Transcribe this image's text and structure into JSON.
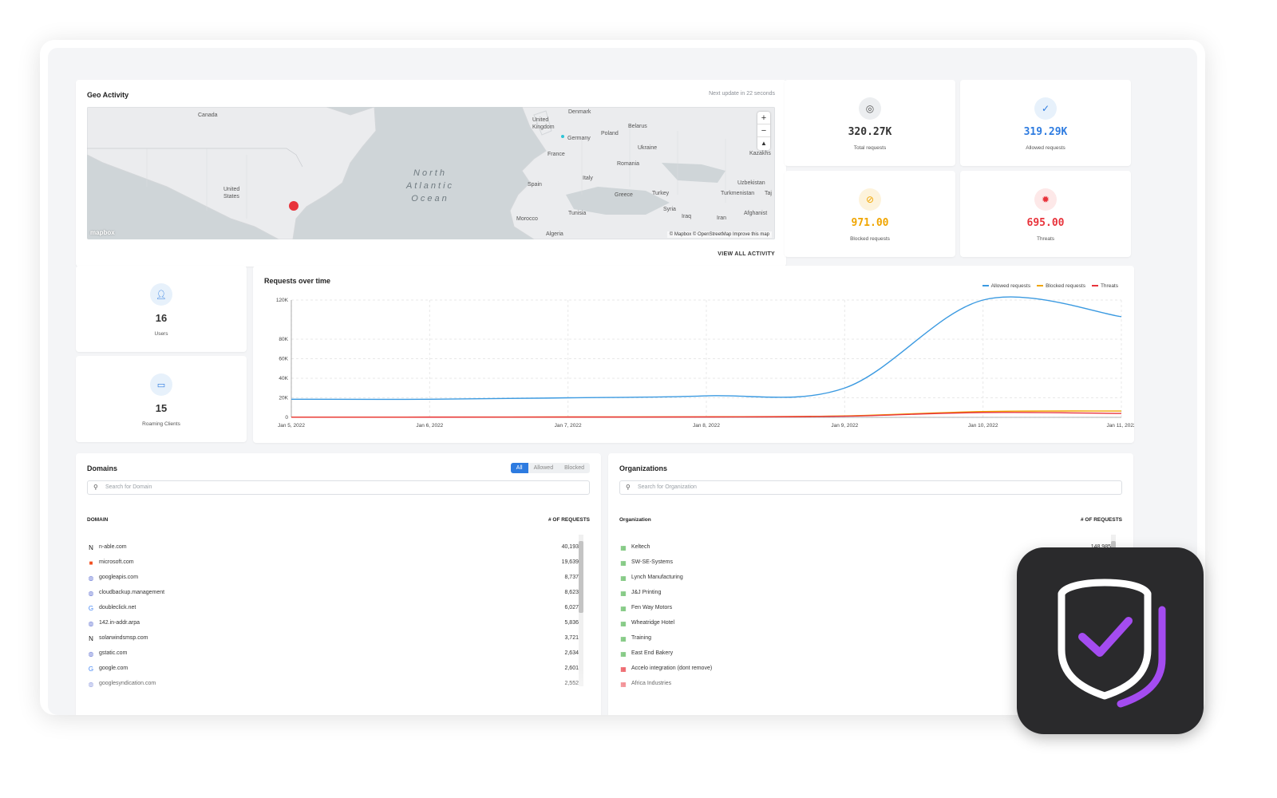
{
  "geo": {
    "title": "Geo Activity",
    "update": "Next update in 22 seconds",
    "view_all": "VIEW ALL ACTIVITY",
    "attribution": "© Mapbox © OpenStreetMap Improve this map",
    "logo": "mapbox",
    "ocean": [
      "North",
      "Atlantic",
      "Ocean"
    ],
    "labels": [
      "Canada",
      "United States",
      "Denmark",
      "United Kingdom",
      "Belarus",
      "Poland",
      "Germany",
      "Ukraine",
      "France",
      "Kazakhs",
      "Romania",
      "Uzbekistan",
      "Spain",
      "Italy",
      "Greece",
      "Turkey",
      "Turkmenistan",
      "Taj",
      "Syria",
      "Afghanist",
      "Tunisia",
      "Iraq",
      "Iran",
      "Morocco",
      "Algeria"
    ]
  },
  "stats": [
    {
      "value": "320.27K",
      "label": "Total requests",
      "color": "#333333",
      "icon_bg": "#eceef0",
      "icon_color": "#555555"
    },
    {
      "value": "319.29K",
      "label": "Allowed requests",
      "color": "#2d7be0",
      "icon_bg": "#e7f1fb",
      "icon_color": "#2d7be0"
    },
    {
      "value": "971.00",
      "label": "Blocked requests",
      "color": "#f0a500",
      "icon_bg": "#fdf3dc",
      "icon_color": "#f0a500"
    },
    {
      "value": "695.00",
      "label": "Threats",
      "color": "#e8333b",
      "icon_bg": "#fde8e8",
      "icon_color": "#e8333b"
    }
  ],
  "users": {
    "value": "16",
    "label": "Users"
  },
  "roaming": {
    "value": "15",
    "label": "Roaming Clients"
  },
  "chart_data": {
    "type": "line",
    "title": "Requests over time",
    "x": [
      "Jan 5, 2022",
      "Jan 6, 2022",
      "Jan 7, 2022",
      "Jan 8, 2022",
      "Jan 9, 2022",
      "Jan 10, 2022",
      "Jan 11, 2022"
    ],
    "yticks": [
      "0",
      "20K",
      "40K",
      "60K",
      "80K",
      "120K"
    ],
    "ylim": [
      0,
      120000
    ],
    "legend": "top-right",
    "series": [
      {
        "name": "Allowed requests",
        "color": "#3b9ae1",
        "values": [
          18500,
          18500,
          20000,
          22000,
          30000,
          120000,
          103000
        ]
      },
      {
        "name": "Blocked requests",
        "color": "#f0a500",
        "values": [
          200,
          300,
          400,
          600,
          1500,
          6000,
          6500
        ]
      },
      {
        "name": "Threats",
        "color": "#e8333b",
        "values": [
          150,
          200,
          300,
          400,
          1200,
          5000,
          4000
        ]
      }
    ]
  },
  "domains": {
    "title": "Domains",
    "filters": [
      "All",
      "Allowed",
      "Blocked"
    ],
    "search_placeholder": "Search for Domain",
    "col_domain": "DOMAIN",
    "col_requests": "# OF REQUESTS",
    "rows": [
      {
        "name": "n-able.com",
        "count": "40,193",
        "icon": "n-able-icon",
        "glyph": "N",
        "color": "#111111"
      },
      {
        "name": "microsoft.com",
        "count": "19,639",
        "icon": "microsoft-icon",
        "glyph": "■",
        "color": "#f25022"
      },
      {
        "name": "googleapis.com",
        "count": "8,737",
        "icon": "globe-icon",
        "glyph": "◍",
        "color": "#6b7bd6"
      },
      {
        "name": "cloudbackup.management",
        "count": "8,623",
        "icon": "globe-icon",
        "glyph": "◍",
        "color": "#6b7bd6"
      },
      {
        "name": "doubleclick.net",
        "count": "6,027",
        "icon": "google-icon",
        "glyph": "G",
        "color": "#4285f4"
      },
      {
        "name": "142.in-addr.arpa",
        "count": "5,836",
        "icon": "globe-icon",
        "glyph": "◍",
        "color": "#6b7bd6"
      },
      {
        "name": "solarwindsmsp.com",
        "count": "3,721",
        "icon": "n-able-icon",
        "glyph": "N",
        "color": "#111111"
      },
      {
        "name": "gstatic.com",
        "count": "2,634",
        "icon": "globe-icon",
        "glyph": "◍",
        "color": "#6b7bd6"
      },
      {
        "name": "google.com",
        "count": "2,601",
        "icon": "google-icon",
        "glyph": "G",
        "color": "#4285f4"
      },
      {
        "name": "googlesyndication.com",
        "count": "2,552",
        "icon": "globe-icon",
        "glyph": "◍",
        "color": "#6b7bd6"
      }
    ]
  },
  "orgs": {
    "title": "Organizations",
    "search_placeholder": "Search for Organization",
    "col_org": "Organization",
    "col_requests": "# OF REQUESTS",
    "rows": [
      {
        "name": "Keltech",
        "count": "148,985",
        "color": "#5cb85c"
      },
      {
        "name": "SW-SE-Systems",
        "count": "",
        "color": "#5cb85c"
      },
      {
        "name": "Lynch Manufacturing",
        "count": "",
        "color": "#5cb85c"
      },
      {
        "name": "J&J Printing",
        "count": "",
        "color": "#5cb85c"
      },
      {
        "name": "Fen Way Motors",
        "count": "",
        "color": "#5cb85c"
      },
      {
        "name": "Wheatridge Hotel",
        "count": "",
        "color": "#5cb85c"
      },
      {
        "name": "Training",
        "count": "",
        "color": "#5cb85c"
      },
      {
        "name": "East End Bakery",
        "count": "",
        "color": "#5cb85c"
      },
      {
        "name": "Accelo integration (dont remove)",
        "count": "",
        "color": "#e8333b"
      },
      {
        "name": "Africa Industries",
        "count": "",
        "color": "#e8333b"
      }
    ]
  }
}
